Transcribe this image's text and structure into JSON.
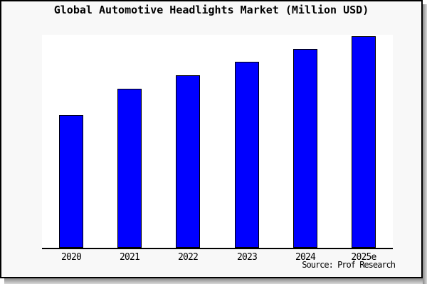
{
  "title": "Global Automotive Headlights Market (Million USD)",
  "source": "Source: Prof Research",
  "colors": {
    "panel_background": "#f8f8f8",
    "plot_background": "#ffffff",
    "bar_fill": "#0000ff",
    "bar_border": "#000000",
    "axis": "#000000",
    "text": "#000000",
    "frame_shadow": "#8a8a8a"
  },
  "chart_data": {
    "type": "bar",
    "title": "Global Automotive Headlights Market (Million USD)",
    "categories": [
      "2020",
      "2021",
      "2022",
      "2023",
      "2024",
      "2025e"
    ],
    "values": [
      62.8,
      75.2,
      81.5,
      87.9,
      94.0,
      100.0
    ],
    "values_note": "No y-axis, gridlines or data labels are shown in the figure; values are estimated bar heights expressed as percent of the tallest (2025e) bar",
    "xlabel": "",
    "ylabel": "",
    "ylim": [
      0,
      100
    ],
    "grid": false,
    "legend": false,
    "bar_color": "#0000ff",
    "bar_border_color": "#000000"
  }
}
